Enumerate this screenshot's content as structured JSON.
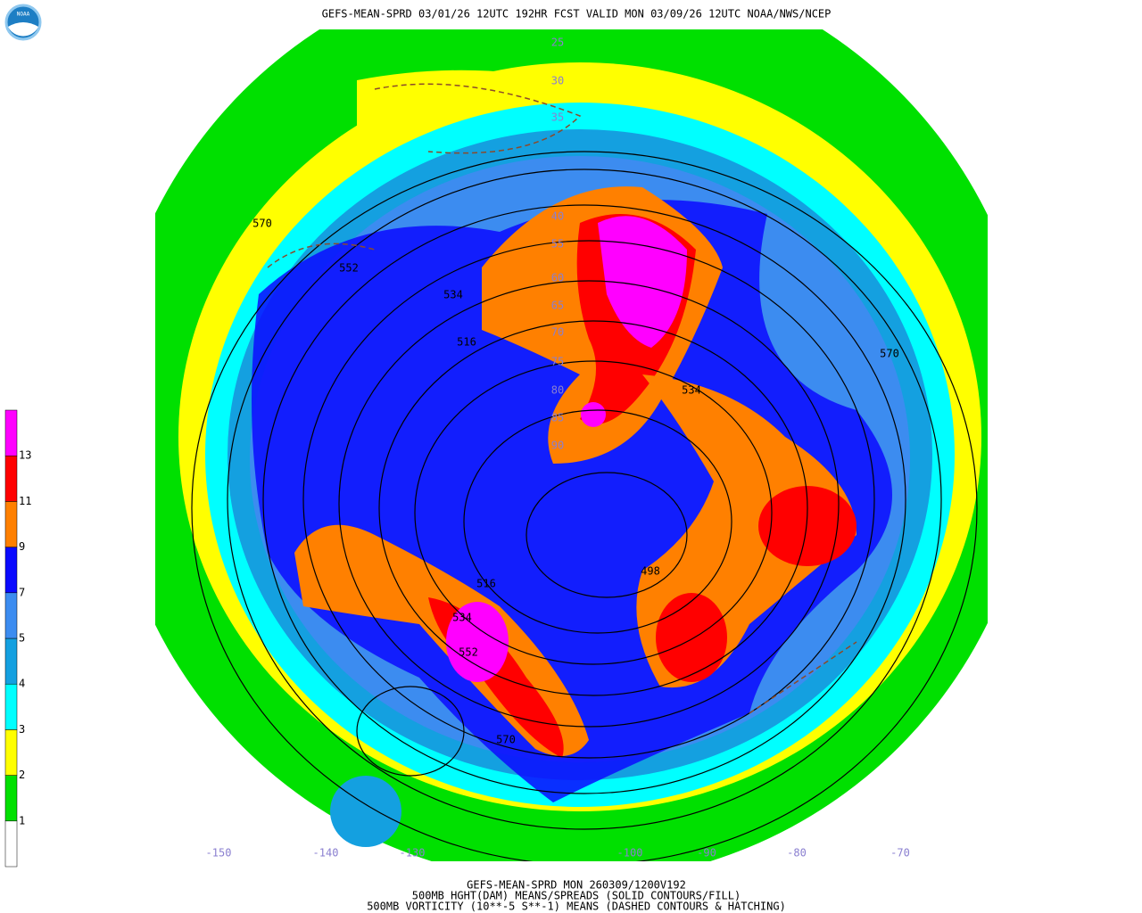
{
  "header": {
    "title": "GEFS-MEAN-SPRD 03/01/26 12UTC 192HR FCST VALID MON 03/09/26 12UTC NOAA/NWS/NCEP",
    "logo": "NOAA"
  },
  "map": {
    "contour_labels": [
      "570",
      "552",
      "534",
      "516",
      "570",
      "534",
      "498",
      "516",
      "534",
      "552",
      "570"
    ],
    "latitude_labels": [
      "25",
      "30",
      "35",
      "40",
      "55",
      "60",
      "65",
      "70",
      "75",
      "80",
      "85",
      "90"
    ],
    "longitude_labels": [
      "-150",
      "-140",
      "-130",
      "-100",
      "-90",
      "-80",
      "-70"
    ]
  },
  "legend": {
    "levels": [
      1,
      2,
      3,
      4,
      5,
      7,
      9,
      11,
      13
    ],
    "colors": [
      "#ffffff",
      "#00e000",
      "#ffff00",
      "#00ffff",
      "#14a0e0",
      "#3c8cf0",
      "#0a0aff",
      "#ff8000",
      "#ff0000",
      "#ff00ff"
    ]
  },
  "footer": {
    "lines": [
      "GEFS-MEAN-SPRD MON 260309/1200V192",
      "500MB HGHT(DAM) MEANS/SPREADS (SOLID CONTOURS/FILL)",
      "500MB VORTICITY (10**-5 S**-1) MEANS (DASHED CONTOURS & HATCHING)"
    ]
  }
}
